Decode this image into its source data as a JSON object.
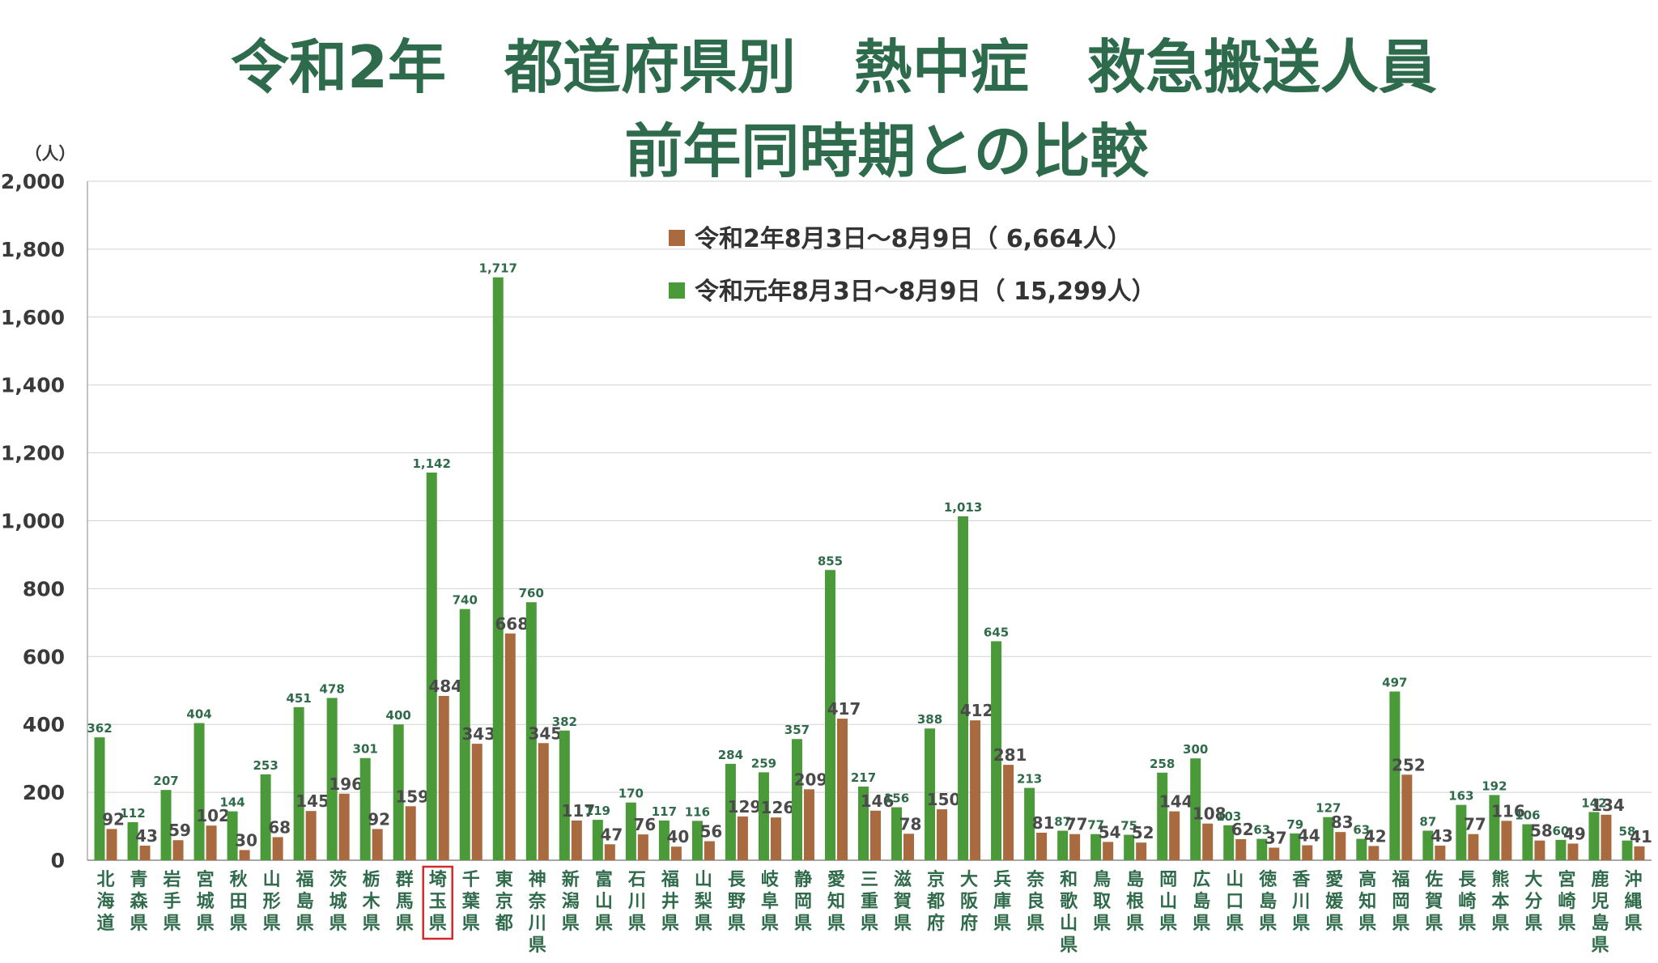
{
  "chart_data": {
    "type": "bar",
    "title_line1": "令和2年　都道府県別　熱中症　救急搬送人員",
    "title_line2": "前年同時期との比較",
    "ylabel": "（人）",
    "ylim": [
      0,
      2000
    ],
    "yticks": [
      0,
      200,
      400,
      600,
      800,
      1000,
      1200,
      1400,
      1600,
      1800,
      2000
    ],
    "ytick_labels": [
      "0",
      "200",
      "400",
      "600",
      "800",
      "1,000",
      "1,200",
      "1,400",
      "1,600",
      "1,800",
      "2,000"
    ],
    "highlight_category": "埼玉県",
    "categories": [
      "北海道",
      "青森県",
      "岩手県",
      "宮城県",
      "秋田県",
      "山形県",
      "福島県",
      "茨城県",
      "栃木県",
      "群馬県",
      "埼玉県",
      "千葉県",
      "東京都",
      "神奈川県",
      "新潟県",
      "富山県",
      "石川県",
      "福井県",
      "山梨県",
      "長野県",
      "岐阜県",
      "静岡県",
      "愛知県",
      "三重県",
      "滋賀県",
      "京都府",
      "大阪府",
      "兵庫県",
      "奈良県",
      "和歌山県",
      "鳥取県",
      "島根県",
      "岡山県",
      "広島県",
      "山口県",
      "徳島県",
      "香川県",
      "愛媛県",
      "高知県",
      "福岡県",
      "佐賀県",
      "長崎県",
      "熊本県",
      "大分県",
      "宮崎県",
      "鹿児島県",
      "沖縄県"
    ],
    "series": [
      {
        "name": "令和元年8月3日～8月9日",
        "total_label": "（ 15,299人）",
        "color": "#4a9a3a",
        "values": [
          362,
          112,
          207,
          404,
          144,
          253,
          451,
          478,
          301,
          400,
          1142,
          740,
          1717,
          760,
          382,
          119,
          170,
          117,
          116,
          284,
          259,
          357,
          855,
          217,
          156,
          388,
          1013,
          645,
          213,
          87,
          77,
          75,
          258,
          300,
          103,
          63,
          79,
          127,
          63,
          497,
          87,
          163,
          192,
          106,
          60,
          142,
          58
        ],
        "value_labels": [
          "362",
          "112",
          "207",
          "404",
          "144",
          "253",
          "451",
          "478",
          "301",
          "400",
          "1,142",
          "740",
          "1,717",
          "760",
          "382",
          "119",
          "170",
          "117",
          "116",
          "284",
          "259",
          "357",
          "855",
          "217",
          "156",
          "388",
          "1,013",
          "645",
          "213",
          "87",
          "77",
          "75",
          "258",
          "300",
          "103",
          "63",
          "79",
          "127",
          "63",
          "497",
          "87",
          "163",
          "192",
          "106",
          "60",
          "142",
          "58"
        ]
      },
      {
        "name": "令和2年8月3日～8月9日",
        "total_label": "（ 6,664人）",
        "color": "#a86a3e",
        "values": [
          92,
          43,
          59,
          102,
          30,
          68,
          145,
          196,
          92,
          159,
          484,
          343,
          668,
          345,
          117,
          47,
          76,
          40,
          56,
          129,
          126,
          209,
          417,
          146,
          78,
          150,
          412,
          281,
          81,
          77,
          54,
          52,
          144,
          108,
          62,
          37,
          44,
          83,
          42,
          252,
          43,
          77,
          116,
          58,
          49,
          134,
          41
        ],
        "value_labels": [
          "92",
          "43",
          "59",
          "102",
          "30",
          "68",
          "145",
          "196",
          "92",
          "159",
          "484",
          "343",
          "668",
          "345",
          "117",
          "47",
          "76",
          "40",
          "56",
          "129",
          "126",
          "209",
          "417",
          "146",
          "78",
          "150",
          "412",
          "281",
          "81",
          "77",
          "54",
          "52",
          "144",
          "108",
          "62",
          "37",
          "44",
          "83",
          "42",
          "252",
          "43",
          "77",
          "116",
          "58",
          "49",
          "134",
          "41"
        ]
      }
    ]
  }
}
